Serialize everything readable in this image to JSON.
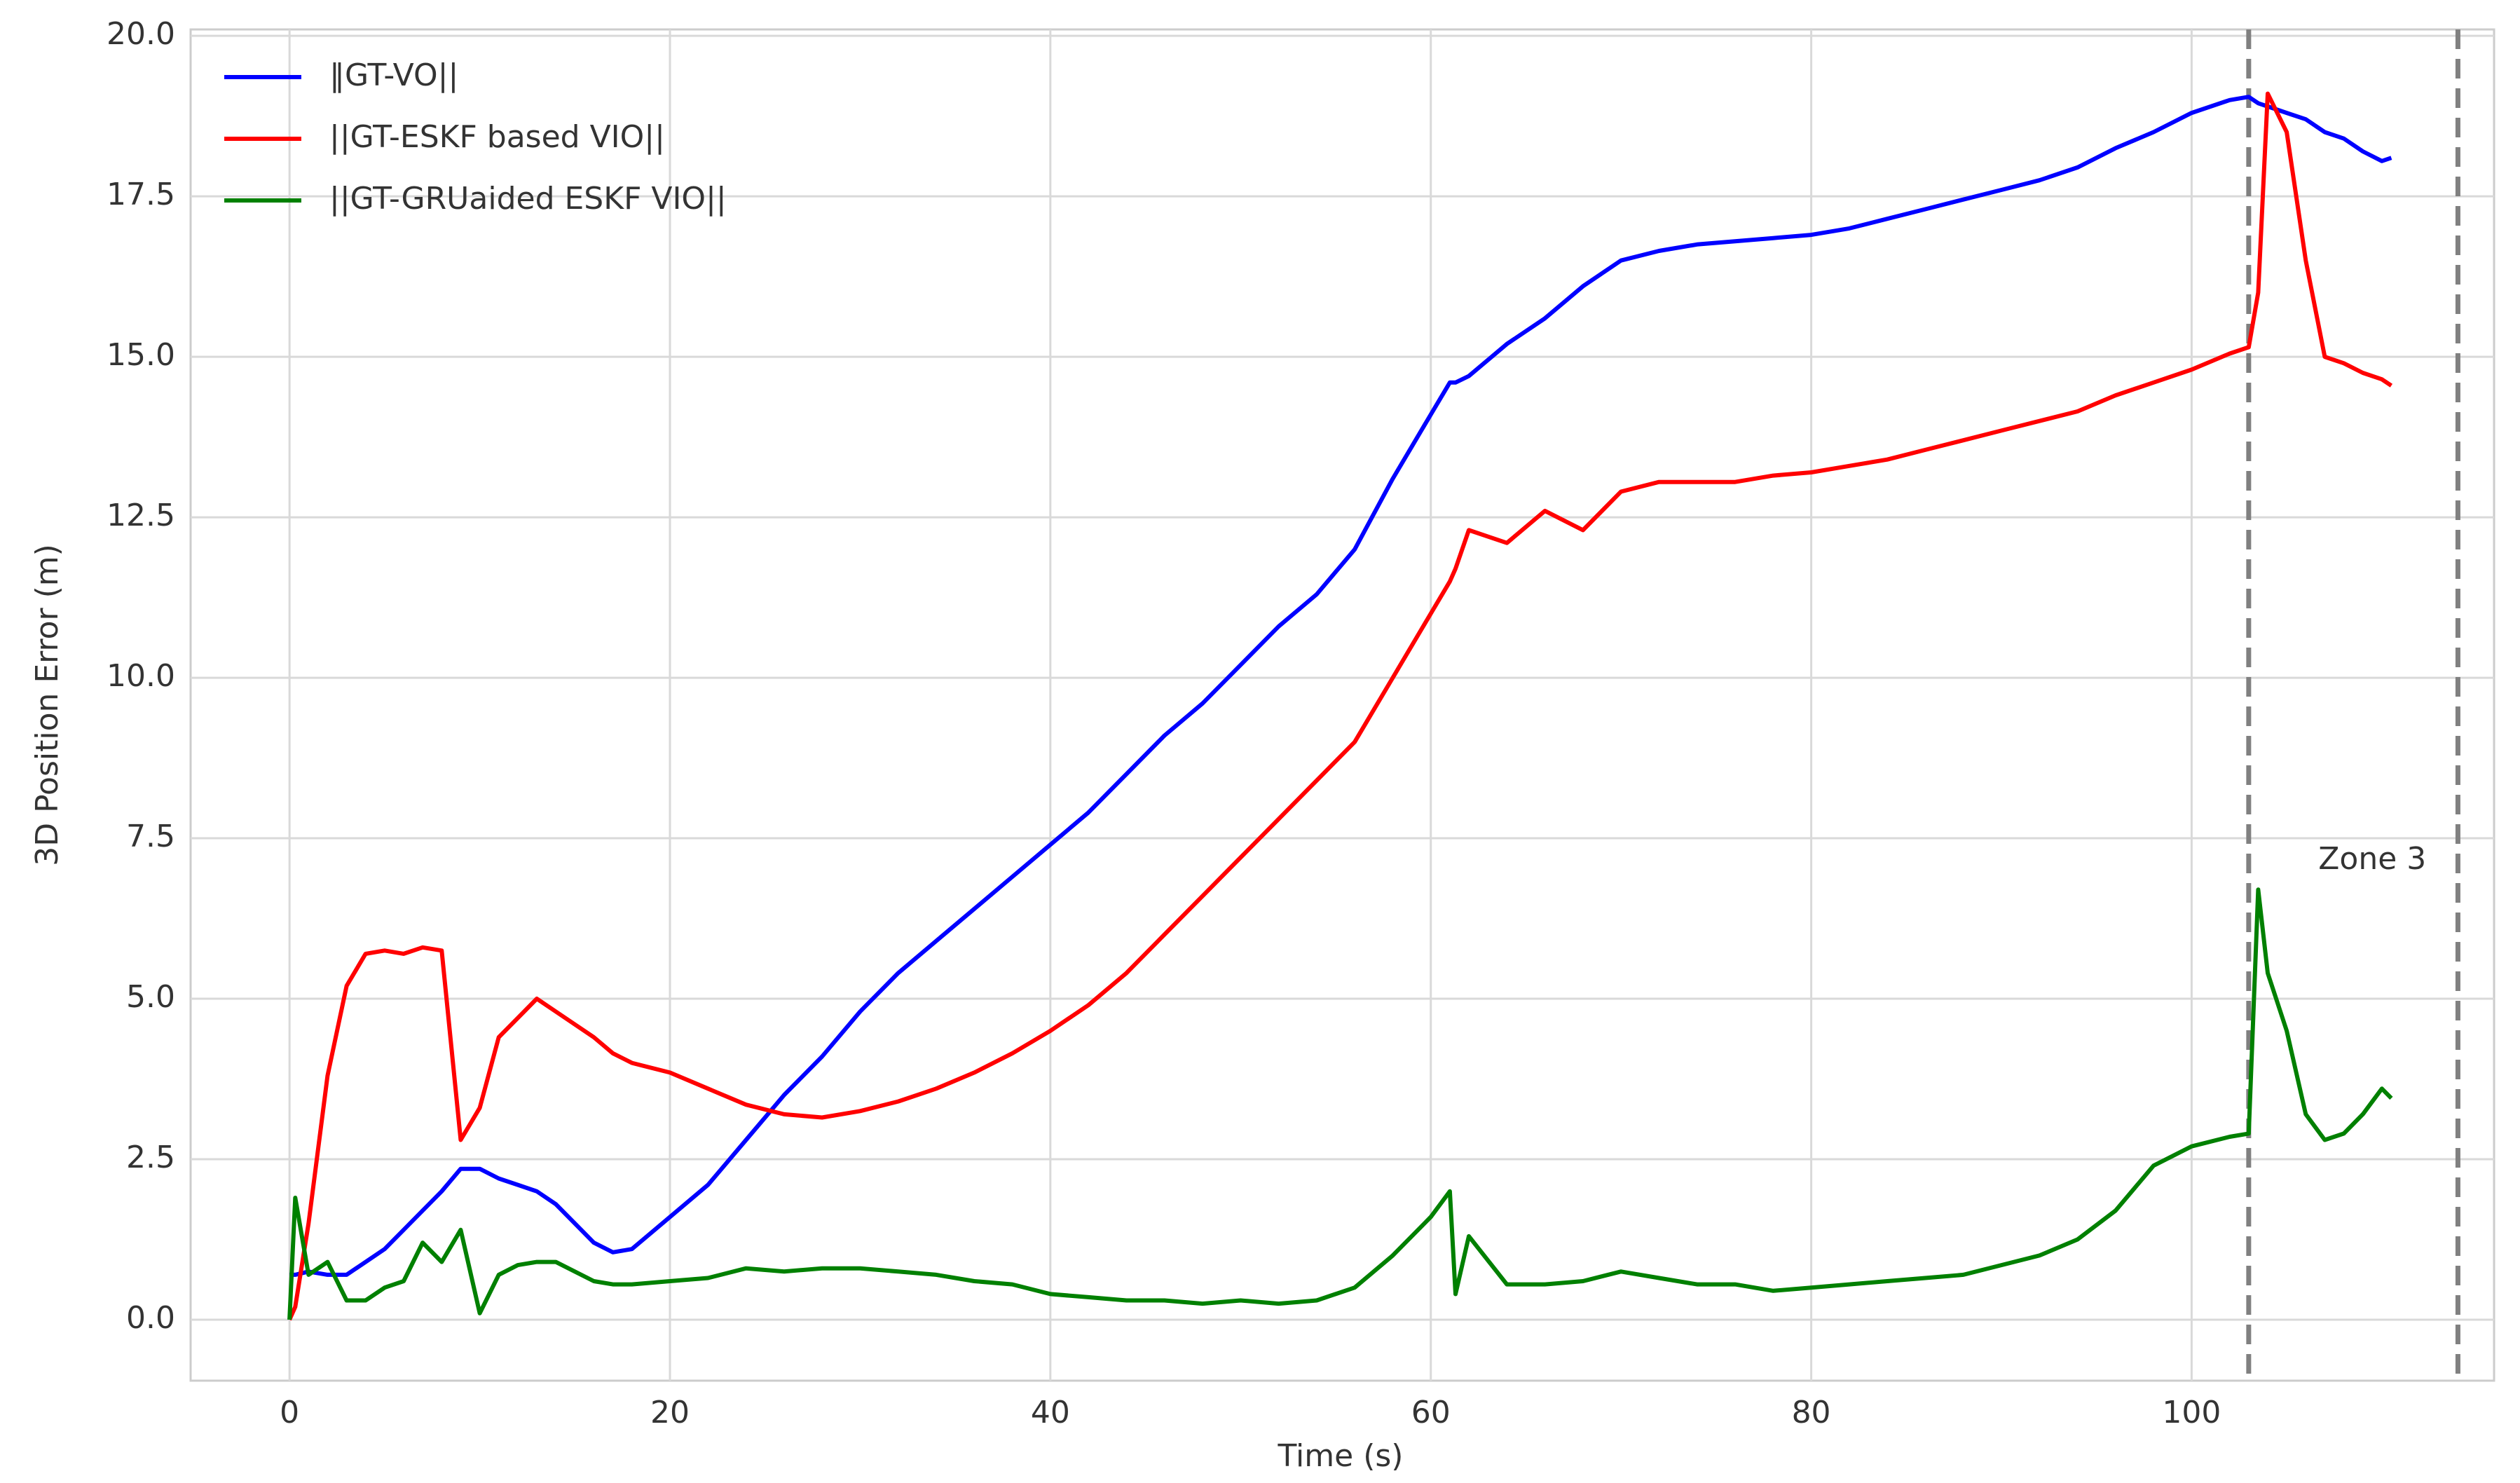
{
  "chart_data": {
    "type": "line",
    "xlabel": "Time (s)",
    "ylabel": "3D Position Error (m)",
    "x": [
      0,
      0.3,
      1,
      2,
      3,
      4,
      5,
      6,
      7,
      8,
      9,
      10,
      11,
      12,
      13,
      14,
      15,
      16,
      17,
      18,
      20,
      22,
      24,
      26,
      28,
      30,
      32,
      34,
      36,
      38,
      40,
      42,
      44,
      46,
      48,
      50,
      52,
      54,
      56,
      58,
      60,
      61,
      61.3,
      62,
      64,
      66,
      68,
      70,
      72,
      74,
      76,
      78,
      80,
      82,
      84,
      86,
      88,
      90,
      92,
      94,
      96,
      98,
      100,
      102,
      103,
      103.5,
      104,
      105,
      106,
      107,
      108,
      109,
      110,
      110.5
    ],
    "series": [
      {
        "name": "‖GT-VO||",
        "color": "#0000ff",
        "values": [
          0.7,
          0.7,
          0.75,
          0.7,
          0.7,
          0.9,
          1.1,
          1.4,
          1.7,
          2.0,
          2.35,
          2.35,
          2.2,
          2.1,
          2.0,
          1.8,
          1.5,
          1.2,
          1.05,
          1.1,
          1.6,
          2.1,
          2.8,
          3.5,
          4.1,
          4.8,
          5.4,
          5.9,
          6.4,
          6.9,
          7.4,
          7.9,
          8.5,
          9.1,
          9.6,
          10.2,
          10.8,
          11.3,
          12.0,
          13.1,
          14.1,
          14.6,
          14.6,
          14.7,
          15.2,
          15.6,
          16.1,
          16.5,
          16.65,
          16.75,
          16.8,
          16.85,
          16.9,
          17.0,
          17.15,
          17.3,
          17.45,
          17.6,
          17.75,
          17.95,
          18.25,
          18.5,
          18.8,
          19.0,
          19.05,
          18.95,
          18.9,
          18.8,
          18.7,
          18.5,
          18.4,
          18.2,
          18.05,
          18.1
        ]
      },
      {
        "name": "||GT-ESKF based VIO||",
        "color": "#ff0000",
        "values": [
          0,
          0.2,
          1.5,
          3.8,
          5.2,
          5.7,
          5.75,
          5.7,
          5.8,
          5.75,
          2.8,
          3.3,
          4.4,
          4.7,
          5.0,
          4.8,
          4.6,
          4.4,
          4.15,
          4.0,
          3.85,
          3.6,
          3.35,
          3.2,
          3.15,
          3.25,
          3.4,
          3.6,
          3.85,
          4.15,
          4.5,
          4.9,
          5.4,
          6.0,
          6.6,
          7.2,
          7.8,
          8.4,
          9.0,
          10.0,
          11.0,
          11.5,
          11.7,
          12.3,
          12.1,
          12.6,
          12.3,
          12.9,
          13.05,
          13.05,
          13.05,
          13.15,
          13.2,
          13.3,
          13.4,
          13.55,
          13.7,
          13.85,
          14.0,
          14.15,
          14.4,
          14.6,
          14.8,
          15.05,
          15.15,
          16,
          19.1,
          18.5,
          16.5,
          15.0,
          14.9,
          14.75,
          14.65,
          14.55
        ]
      },
      {
        "name": "||GT-GRUaided ESKF VIO||",
        "color": "#008000",
        "values": [
          0,
          1.9,
          0.7,
          0.9,
          0.3,
          0.3,
          0.5,
          0.6,
          1.2,
          0.9,
          1.4,
          0.1,
          0.7,
          0.85,
          0.9,
          0.9,
          0.75,
          0.6,
          0.55,
          0.55,
          0.6,
          0.65,
          0.8,
          0.75,
          0.8,
          0.8,
          0.75,
          0.7,
          0.6,
          0.55,
          0.4,
          0.35,
          0.3,
          0.3,
          0.25,
          0.3,
          0.25,
          0.3,
          0.5,
          1.0,
          1.6,
          2.0,
          0.4,
          1.3,
          0.55,
          0.55,
          0.6,
          0.75,
          0.65,
          0.55,
          0.55,
          0.45,
          0.5,
          0.55,
          0.6,
          0.65,
          0.7,
          0.85,
          1.0,
          1.25,
          1.7,
          2.4,
          2.7,
          2.85,
          2.9,
          6.7,
          5.4,
          4.5,
          3.2,
          2.8,
          2.9,
          3.2,
          3.6,
          3.45
        ]
      }
    ],
    "vlines": [
      103,
      114
    ],
    "vline_color": "#808080",
    "annotations": [
      {
        "text": "Zone 3",
        "x": 109.5,
        "y": 7.15
      }
    ],
    "xlim": [
      -5.2,
      115.9
    ],
    "ylim": [
      -0.95,
      20.1
    ],
    "xticks": [
      0,
      20,
      40,
      60,
      80,
      100
    ],
    "yticks": [
      {
        "value": 0,
        "label": "0.0"
      },
      {
        "value": 2.5,
        "label": "2.5"
      },
      {
        "value": 5,
        "label": "5.0"
      },
      {
        "value": 7.5,
        "label": "7.5"
      },
      {
        "value": 10,
        "label": "10.0"
      },
      {
        "value": 12.5,
        "label": "12.5"
      },
      {
        "value": 15,
        "label": "15.0"
      },
      {
        "value": 17.5,
        "label": "17.5"
      },
      {
        "value": 20,
        "label": "20.0"
      }
    ],
    "grid": true,
    "legend": "upper left"
  }
}
